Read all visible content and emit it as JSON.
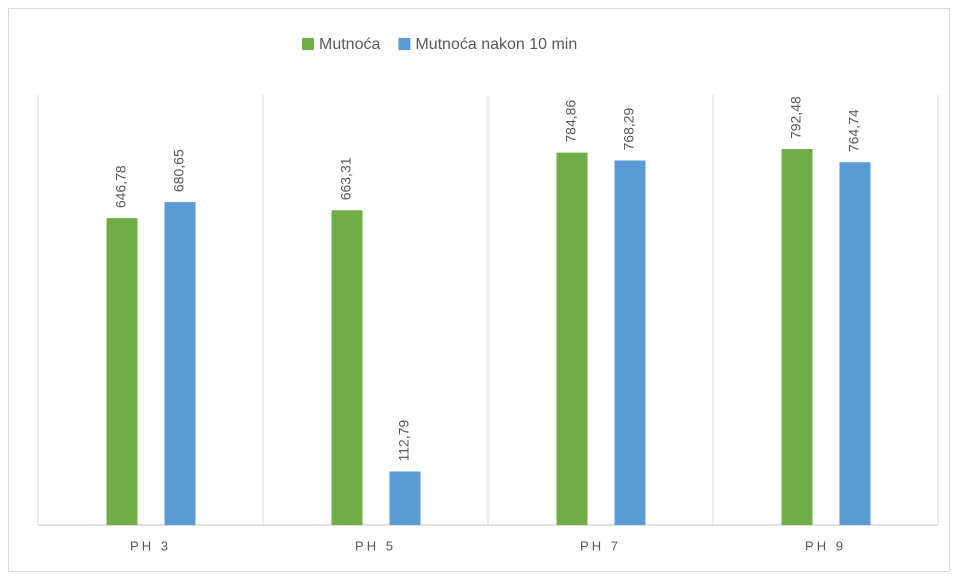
{
  "chart_data": {
    "type": "bar",
    "categories": [
      "PH 3",
      "PH 5",
      "PH 7",
      "PH 9"
    ],
    "series": [
      {
        "name": "Mutnoća",
        "color": "#70ad47",
        "values": [
          646.78,
          663.31,
          784.86,
          792.48
        ],
        "value_labels": [
          "646,78",
          "663,31",
          "784,86",
          "792,48"
        ]
      },
      {
        "name": "Mutnoća nakon 10 min",
        "color": "#5b9bd5",
        "values": [
          680.65,
          112.79,
          768.29,
          764.74
        ],
        "value_labels": [
          "680,65",
          "112,79",
          "768,29",
          "764,74"
        ]
      }
    ],
    "ylim": [
      0,
      900
    ],
    "legend": "top"
  }
}
